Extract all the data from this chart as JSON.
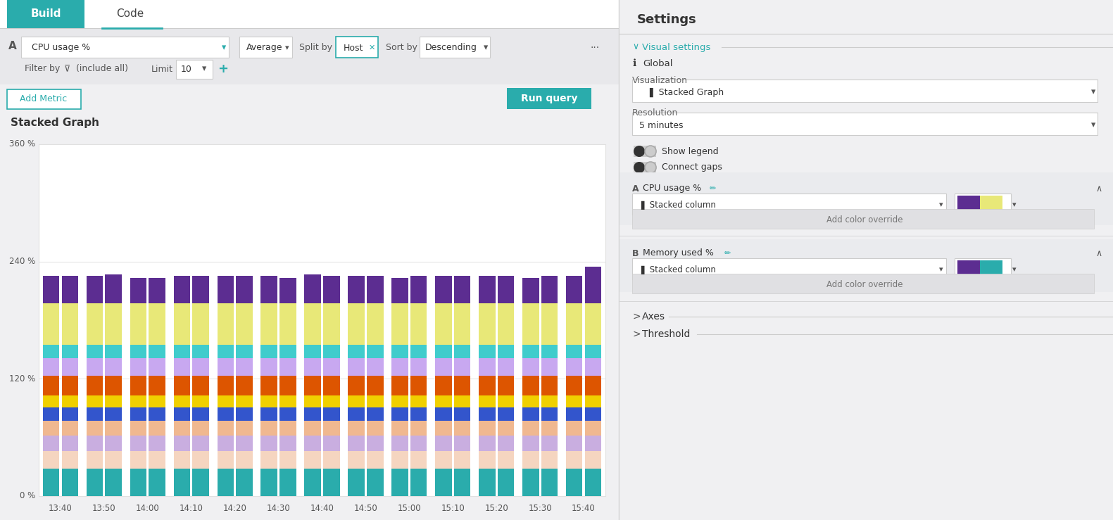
{
  "title": "Stacked Graph",
  "bg_color": "#f0f0f2",
  "left_panel_bg": "#ffffff",
  "right_panel_bg": "#ffffff",
  "ylim": [
    0,
    360
  ],
  "yticks": [
    0,
    120,
    240,
    360
  ],
  "ytick_labels": [
    "0 %",
    "120 %",
    "240 %",
    "360 %"
  ],
  "x_labels": [
    "13:40",
    "13:50",
    "14:00",
    "14:10",
    "14:20",
    "14:30",
    "14:40",
    "14:50",
    "15:00",
    "15:10",
    "15:20",
    "15:30",
    "15:40"
  ],
  "n_groups": 13,
  "layers": [
    {
      "color": "#2aacac",
      "value": 28
    },
    {
      "color": "#f5d5c0",
      "value": 18
    },
    {
      "color": "#c9aee0",
      "value": 16
    },
    {
      "color": "#f0b890",
      "value": 15
    },
    {
      "color": "#3355cc",
      "value": 14
    },
    {
      "color": "#f0d000",
      "value": 12
    },
    {
      "color": "#dd5500",
      "value": 20
    },
    {
      "color": "#c8a8f0",
      "value": 18
    },
    {
      "color": "#40cccc",
      "value": 14
    },
    {
      "color": "#e8e878",
      "value": 42
    },
    {
      "color": "#5c2d91",
      "value": 28
    }
  ],
  "purple_top_vals": [
    28,
    28,
    28,
    30,
    26,
    26,
    28,
    28,
    28,
    28,
    28,
    26,
    30,
    28,
    28,
    28,
    26,
    28,
    28,
    28,
    28,
    28,
    26,
    28,
    28,
    38
  ],
  "teal_color": "#2aacac",
  "header_bg": "#e8e8eb",
  "chart_title": "Stacked Graph",
  "build_btn_color": "#2aacac",
  "settings_title": "Settings",
  "vis_settings_label": "Visual settings",
  "global_label": "Global",
  "vis_label": "Visualization",
  "vis_value": "Stacked Graph",
  "res_label": "Resolution",
  "res_value": "5 minutes",
  "show_legend": "Show legend",
  "connect_gaps": "Connect gaps",
  "cpu_label": "CPU usage %",
  "mem_label": "Memory used %",
  "stacked_col": "Stacked column",
  "add_color_override": "Add color override",
  "axes_label": "Axes",
  "threshold_label": "Threshold",
  "run_query": "Run query",
  "add_metric": "Add Metric",
  "average": "Average",
  "split_by": "Split by",
  "host": "Host",
  "sort_by": "Sort by",
  "descending": "Descending",
  "filter_by": "Filter by",
  "include_all": "(include all)",
  "limit": "Limit",
  "limit_val": "10",
  "cpu_usage": "CPU usage %",
  "swatch_a": [
    "#5c2d91",
    "#e8e878"
  ],
  "swatch_b": [
    "#5c2d91",
    "#2aacac"
  ]
}
